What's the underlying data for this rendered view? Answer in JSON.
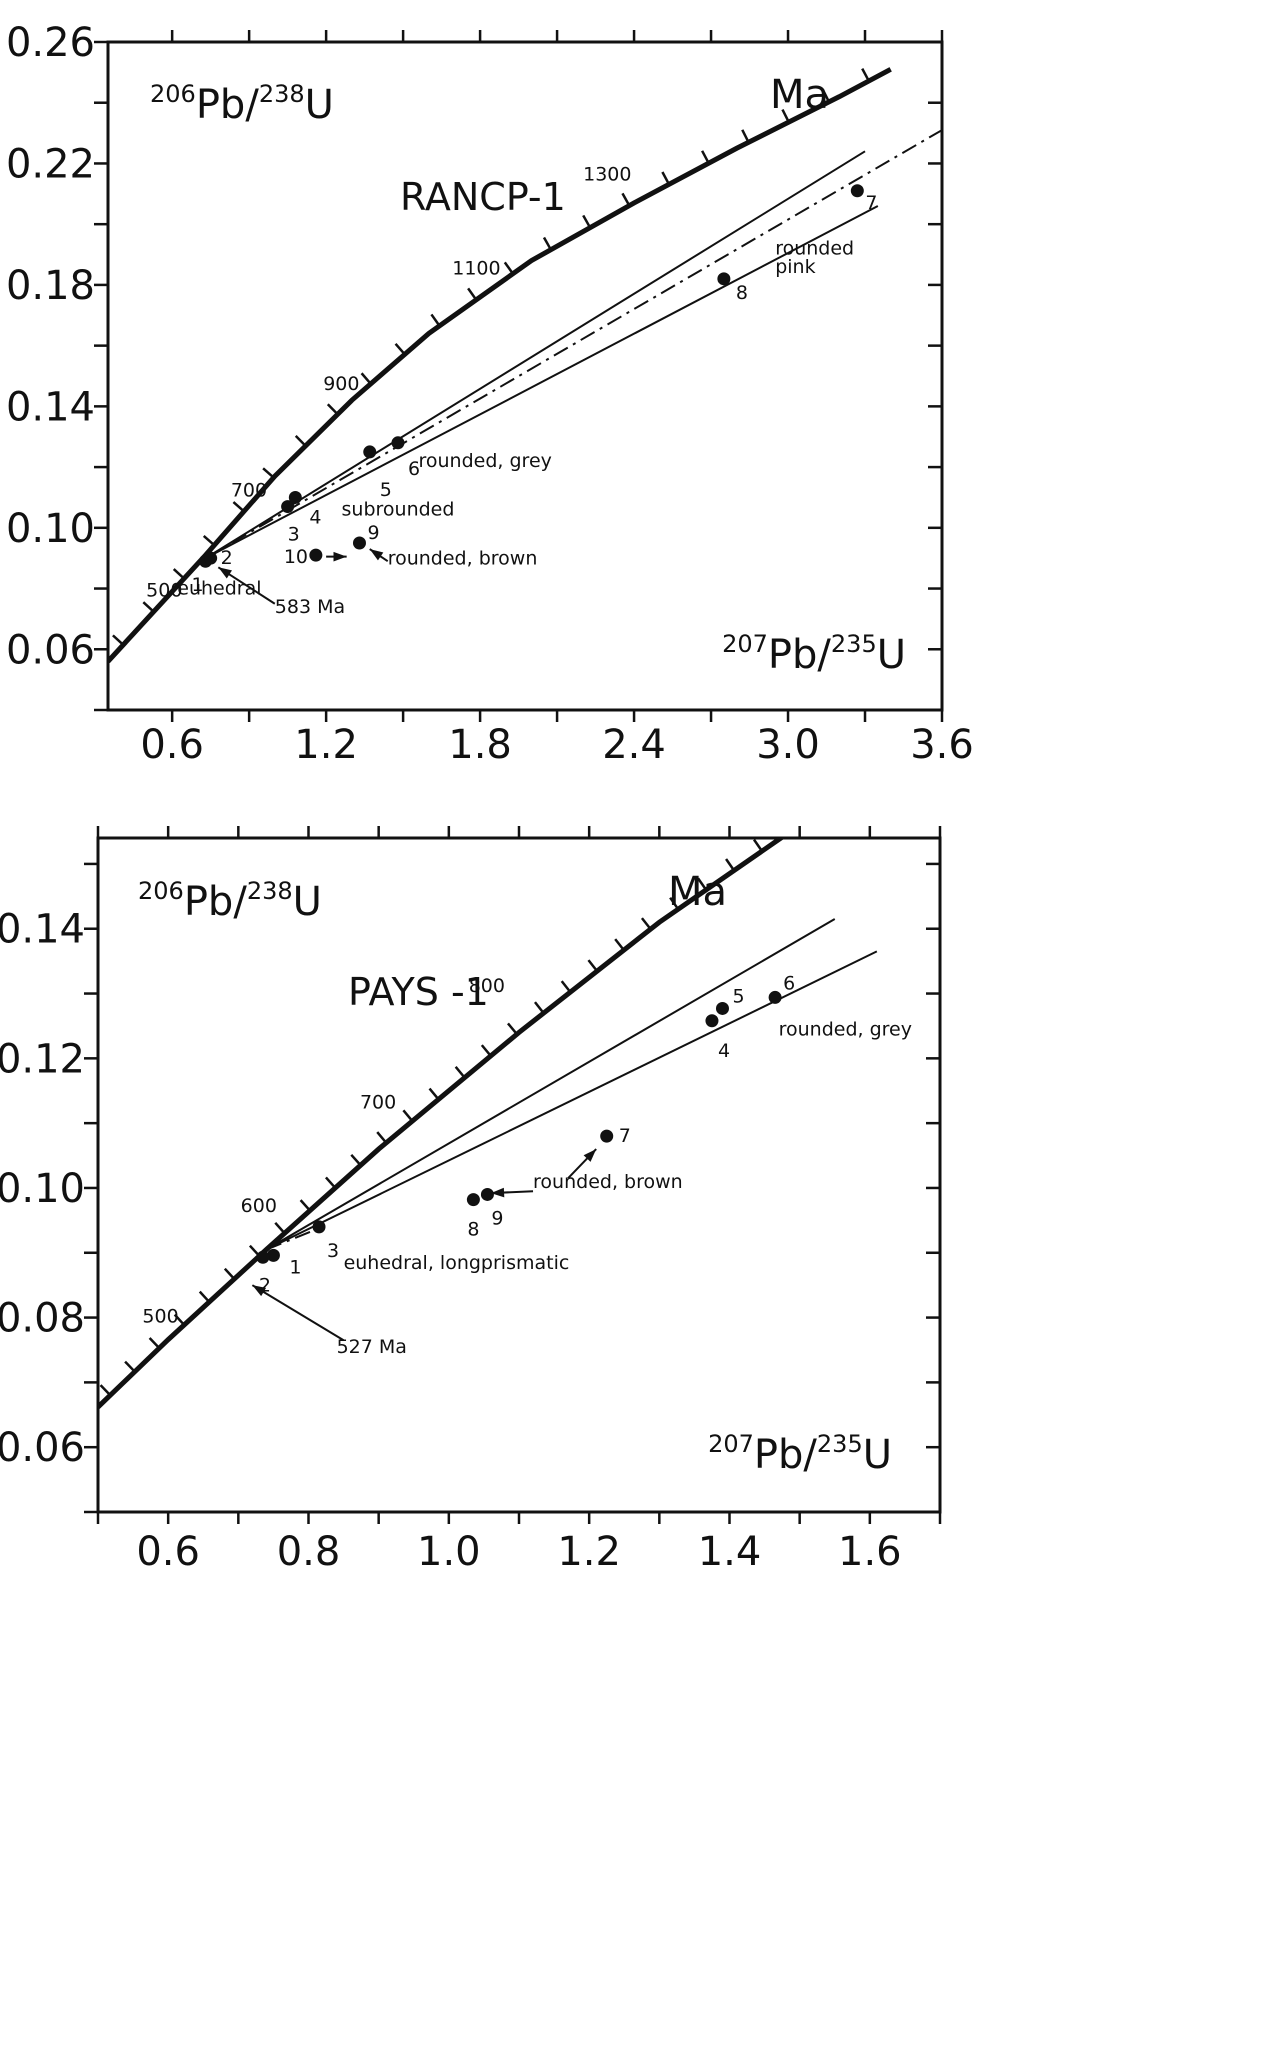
{
  "chart_data": [
    {
      "type": "scatter",
      "title": "RANCP-1",
      "y_axis_label": "206Pb/238U",
      "x_axis_label": "207Pb/235U",
      "xlim": [
        0.35,
        3.6
      ],
      "ylim": [
        0.04,
        0.26
      ],
      "x_ticks": [
        "0.6",
        "1.2",
        "1.8",
        "2.4",
        "3.0",
        "3.6"
      ],
      "x_tick_values": [
        0.6,
        1.2,
        1.8,
        2.4,
        3.0,
        3.6
      ],
      "y_ticks": [
        "0.26",
        "0.22",
        "0.18",
        "0.14",
        "0.10",
        "0.06"
      ],
      "y_tick_values": [
        0.26,
        0.22,
        0.18,
        0.14,
        0.1,
        0.06
      ],
      "concordia_label": "Ma",
      "concordia_age_labels": [
        {
          "text": "500",
          "x": 0.64,
          "y": 0.08
        },
        {
          "text": "700",
          "x": 0.97,
          "y": 0.113
        },
        {
          "text": "900",
          "x": 1.33,
          "y": 0.148
        },
        {
          "text": "1100",
          "x": 1.88,
          "y": 0.186
        },
        {
          "text": "1300",
          "x": 2.39,
          "y": 0.217
        }
      ],
      "concordia": [
        [
          0.35,
          0.056
        ],
        [
          0.73,
          0.091
        ],
        [
          1.0,
          0.117
        ],
        [
          1.3,
          0.142
        ],
        [
          1.6,
          0.164
        ],
        [
          2.0,
          0.188
        ],
        [
          2.4,
          0.207
        ],
        [
          2.8,
          0.225
        ],
        [
          3.2,
          0.242
        ],
        [
          3.4,
          0.251
        ]
      ],
      "discordia_lines": [
        {
          "style": "solid",
          "from": [
            0.73,
            0.09
          ],
          "to": [
            3.3,
            0.224
          ]
        },
        {
          "style": "dashdot",
          "from": [
            0.73,
            0.09
          ],
          "to": [
            3.6,
            0.231
          ]
        },
        {
          "style": "solid",
          "from": [
            0.73,
            0.09
          ],
          "to": [
            3.35,
            0.206
          ]
        }
      ],
      "points": [
        {
          "label": "1",
          "x": 0.73,
          "y": 0.089
        },
        {
          "label": "2",
          "x": 0.75,
          "y": 0.09
        },
        {
          "label": "3",
          "x": 1.05,
          "y": 0.107
        },
        {
          "label": "4",
          "x": 1.08,
          "y": 0.11
        },
        {
          "label": "5",
          "x": 1.37,
          "y": 0.125
        },
        {
          "label": "6",
          "x": 1.48,
          "y": 0.128
        },
        {
          "label": "7",
          "x": 3.27,
          "y": 0.211
        },
        {
          "label": "8",
          "x": 2.75,
          "y": 0.182
        },
        {
          "label": "9",
          "x": 1.33,
          "y": 0.095
        },
        {
          "label": "10",
          "x": 1.16,
          "y": 0.091
        }
      ],
      "annotations": [
        {
          "text": "euhedral",
          "x": 0.62,
          "y": 0.078
        },
        {
          "text": "subrounded",
          "x": 1.26,
          "y": 0.104
        },
        {
          "text": "rounded, grey",
          "x": 1.56,
          "y": 0.12
        },
        {
          "text": "rounded, brown",
          "x": 1.44,
          "y": 0.088
        },
        {
          "text": "rounded",
          "x": 2.95,
          "y": 0.19
        },
        {
          "text": "pink",
          "x": 2.95,
          "y": 0.184
        },
        {
          "text": "583 Ma",
          "x": 1.0,
          "y": 0.072
        }
      ]
    },
    {
      "type": "scatter",
      "title": "PAYS -1",
      "y_axis_label": "206Pb/238U",
      "x_axis_label": "207Pb/235U",
      "xlim": [
        0.5,
        1.7
      ],
      "ylim": [
        0.05,
        0.154
      ],
      "x_ticks": [
        "0.6",
        "0.8",
        "1.0",
        "1.2",
        "1.4",
        "1.6"
      ],
      "x_tick_values": [
        0.6,
        0.8,
        1.0,
        1.2,
        1.4,
        1.6
      ],
      "y_ticks": [
        "0.14",
        "0.12",
        "0.10",
        "0.08",
        "0.06"
      ],
      "y_tick_values": [
        0.14,
        0.12,
        0.1,
        0.08,
        0.06
      ],
      "concordia_label": "Ma",
      "concordia_age_labels": [
        {
          "text": "500",
          "x": 0.615,
          "y": 0.0805
        },
        {
          "text": "600",
          "x": 0.755,
          "y": 0.0975
        },
        {
          "text": "700",
          "x": 0.925,
          "y": 0.1135
        },
        {
          "text": "800",
          "x": 1.08,
          "y": 0.1315
        }
      ],
      "concordia": [
        [
          0.5,
          0.0662
        ],
        [
          0.6,
          0.0766
        ],
        [
          0.74,
          0.0905
        ],
        [
          0.9,
          0.106
        ],
        [
          1.1,
          0.124
        ],
        [
          1.3,
          0.141
        ],
        [
          1.5,
          0.156
        ]
      ],
      "discordia_lines": [
        {
          "style": "solid",
          "from": [
            0.74,
            0.0905
          ],
          "to": [
            1.55,
            0.1415
          ]
        },
        {
          "style": "solid",
          "from": [
            0.74,
            0.0905
          ],
          "to": [
            1.61,
            0.1365
          ]
        },
        {
          "style": "dashdot",
          "from": [
            0.74,
            0.0905
          ],
          "to": [
            0.82,
            0.094
          ]
        }
      ],
      "points": [
        {
          "label": "1",
          "x": 0.75,
          "y": 0.0896
        },
        {
          "label": "2",
          "x": 0.735,
          "y": 0.0893
        },
        {
          "label": "3",
          "x": 0.815,
          "y": 0.094
        },
        {
          "label": "4",
          "x": 1.375,
          "y": 0.1258
        },
        {
          "label": "5",
          "x": 1.39,
          "y": 0.1277
        },
        {
          "label": "6",
          "x": 1.465,
          "y": 0.1294
        },
        {
          "label": "7",
          "x": 1.225,
          "y": 0.108
        },
        {
          "label": "8",
          "x": 1.035,
          "y": 0.0982
        },
        {
          "label": "9",
          "x": 1.055,
          "y": 0.099
        }
      ],
      "annotations": [
        {
          "text": "euhedral, longprismatic",
          "x": 0.85,
          "y": 0.0875
        },
        {
          "text": "rounded, grey",
          "x": 1.47,
          "y": 0.1235
        },
        {
          "text": "rounded, brown",
          "x": 1.12,
          "y": 0.1
        },
        {
          "text": "527 Ma",
          "x": 0.84,
          "y": 0.0745
        }
      ]
    }
  ]
}
